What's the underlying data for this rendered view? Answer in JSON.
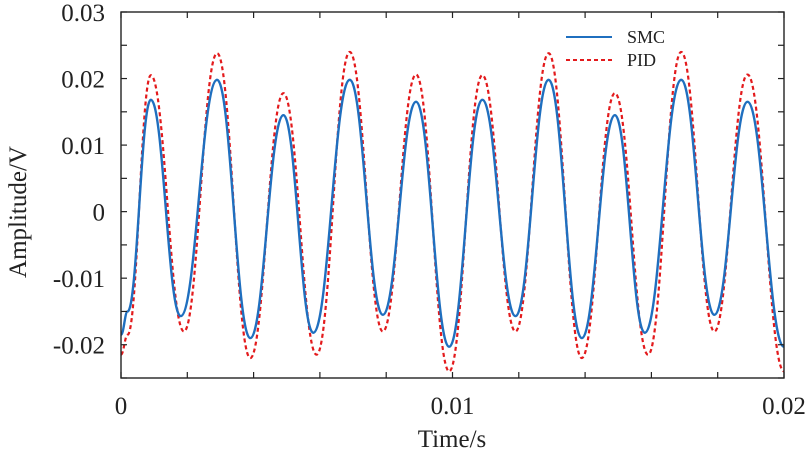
{
  "chart_data": {
    "type": "line",
    "xlabel": "Time/s",
    "ylabel": "Amplitude/V",
    "xlim": [
      0,
      0.02
    ],
    "ylim": [
      -0.025,
      0.03
    ],
    "x_ticks": [
      0,
      0.01,
      0.02
    ],
    "x_tick_labels": [
      "0",
      "0.01",
      "0.02"
    ],
    "x_minor_ticks": [
      0.002,
      0.004,
      0.006,
      0.008,
      0.012,
      0.014,
      0.016,
      0.018
    ],
    "y_ticks": [
      -0.02,
      -0.01,
      0,
      0.01,
      0.02,
      0.03
    ],
    "y_tick_labels": [
      "-0.02",
      "-0.01",
      "0",
      "0.01",
      "0.02",
      "0.03"
    ],
    "legend_position": "top-right",
    "series": [
      {
        "name": "SMC",
        "color": "#1f6fbf",
        "style": "solid",
        "x": [
          0,
          0.0002,
          0.0009,
          0.0018,
          0.0029,
          0.0039,
          0.0049,
          0.0058,
          0.0069,
          0.0079,
          0.0089,
          0.0099,
          0.0109,
          0.0119,
          0.0129,
          0.0139,
          0.0149,
          0.0158,
          0.0169,
          0.0179,
          0.0189,
          0.02
        ],
        "y": [
          -0.0185,
          -0.015,
          0.0168,
          -0.0157,
          0.0198,
          -0.019,
          0.0145,
          -0.0182,
          0.0198,
          -0.0155,
          0.0165,
          -0.0203,
          0.0168,
          -0.0157,
          0.0198,
          -0.019,
          0.0145,
          -0.0182,
          0.0198,
          -0.0155,
          0.0165,
          -0.0203
        ]
      },
      {
        "name": "PID",
        "color": "#e31a1c",
        "style": "dashed",
        "x": [
          0,
          0.0002,
          0.0009,
          0.0019,
          0.0029,
          0.0039,
          0.0049,
          0.0059,
          0.0069,
          0.0079,
          0.0089,
          0.0099,
          0.0109,
          0.0119,
          0.0129,
          0.0139,
          0.0149,
          0.0159,
          0.0169,
          0.0179,
          0.0189,
          0.02
        ],
        "y": [
          -0.0215,
          -0.0185,
          0.0205,
          -0.018,
          0.0238,
          -0.022,
          0.0178,
          -0.0215,
          0.024,
          -0.018,
          0.0206,
          -0.024,
          0.0205,
          -0.018,
          0.0238,
          -0.022,
          0.0178,
          -0.0215,
          0.024,
          -0.018,
          0.0206,
          -0.024
        ]
      }
    ]
  }
}
